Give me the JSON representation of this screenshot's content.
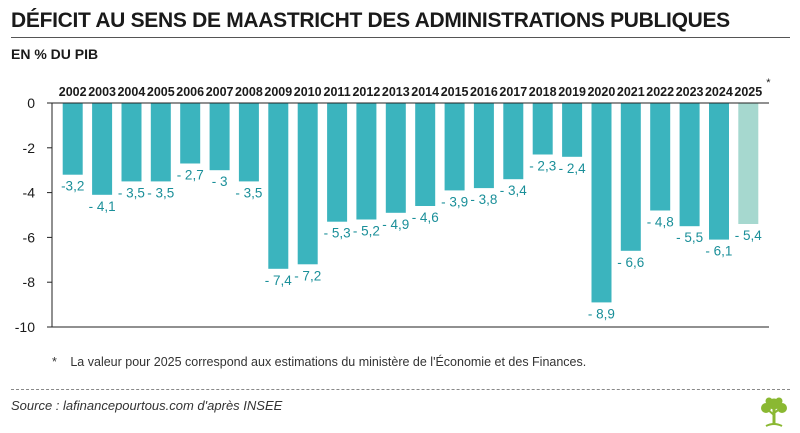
{
  "title": "DÉFICIT AU SENS DE MAASTRICHT DES ADMINISTRATIONS PUBLIQUES",
  "subtitle": "EN % DU PIB",
  "footnote_marker": "*",
  "footnote_text": "La valeur pour 2025 correspond aux estimations du ministère de l'Économie et des Finances.",
  "source": "Source : lafinancepourtous.com d'après INSEE",
  "logo_icon": "tree-logo-icon",
  "colors": {
    "bar": "#3bb4be",
    "bar_estimate": "#a6d8cf",
    "label": "#1a8f99",
    "axis": "#222222",
    "logo": "#8ab832"
  },
  "chart_data": {
    "type": "bar",
    "title": "DÉFICIT AU SENS DE MAASTRICHT DES ADMINISTRATIONS PUBLIQUES",
    "ylabel": "EN % DU PIB",
    "xlabel": "",
    "ylim": [
      -10,
      0
    ],
    "yticks": [
      0,
      -2,
      -4,
      -6,
      -8,
      -10
    ],
    "ytick_labels": [
      "0",
      "-2",
      "-4",
      "-6",
      "-8",
      "-10"
    ],
    "grid": false,
    "legend": "none",
    "categories": [
      "2002",
      "2003",
      "2004",
      "2005",
      "2006",
      "2007",
      "2008",
      "2009",
      "2010",
      "2011",
      "2012",
      "2013",
      "2014",
      "2015",
      "2016",
      "2017",
      "2018",
      "2019",
      "2020",
      "2021",
      "2022",
      "2023",
      "2024",
      "2025"
    ],
    "category_marks": [
      "",
      "",
      "",
      "",
      "",
      "",
      "",
      "",
      "",
      "",
      "",
      "",
      "",
      "",
      "",
      "",
      "",
      "",
      "",
      "",
      "",
      "",
      "",
      "*"
    ],
    "values": [
      -3.2,
      -4.1,
      -3.5,
      -3.5,
      -2.7,
      -3,
      -3.5,
      -7.4,
      -7.2,
      -5.3,
      -5.2,
      -4.9,
      -4.6,
      -3.9,
      -3.8,
      -3.4,
      -2.3,
      -2.4,
      -8.9,
      -6.6,
      -4.8,
      -5.5,
      -6.1,
      -5.4
    ],
    "data_labels": [
      "-3,2",
      "- 4,1",
      "- 3,5",
      "- 3,5",
      "- 2,7",
      "- 3",
      "- 3,5",
      "- 7,4",
      "- 7,2",
      "- 5,3",
      "- 5,2",
      "- 4,9",
      "- 4,6",
      "- 3,9",
      "- 3,8",
      "- 3,4",
      "- 2,3",
      "- 2,4",
      "- 8,9",
      "- 6,6",
      "- 4,8",
      "- 5,5",
      "- 6,1",
      "- 5,4"
    ],
    "estimate_flags": [
      false,
      false,
      false,
      false,
      false,
      false,
      false,
      false,
      false,
      false,
      false,
      false,
      false,
      false,
      false,
      false,
      false,
      false,
      false,
      false,
      false,
      false,
      false,
      true
    ]
  }
}
